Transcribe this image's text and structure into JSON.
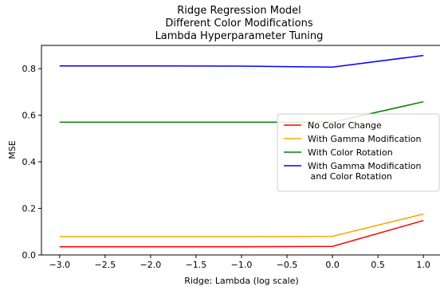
{
  "chart_data": {
    "type": "line",
    "title_lines": [
      "Ridge Regression Model",
      "Different Color Modifications",
      "Lambda Hyperparameter Tuning"
    ],
    "xlabel": "Ridge: Lambda (log scale)",
    "ylabel": "MSE",
    "xlim": [
      -3.2,
      1.2
    ],
    "ylim": [
      0.0,
      0.9
    ],
    "xticks": [
      -3.0,
      -2.5,
      -2.0,
      -1.5,
      -1.0,
      -0.5,
      0.0,
      0.5,
      1.0
    ],
    "xtick_labels": [
      "−3.0",
      "−2.5",
      "−2.0",
      "−1.5",
      "−1.0",
      "−0.5",
      "0.0",
      "0.5",
      "1.0"
    ],
    "yticks": [
      0.0,
      0.2,
      0.4,
      0.6,
      0.8
    ],
    "ytick_labels": [
      "0.0",
      "0.2",
      "0.4",
      "0.6",
      "0.8"
    ],
    "grid": false,
    "legend_position": "center-right",
    "x": [
      -3,
      -2,
      -1,
      0,
      1
    ],
    "series": [
      {
        "name": "No Color Change",
        "color": "#ff0000",
        "values": [
          0.035,
          0.035,
          0.035,
          0.037,
          0.148
        ]
      },
      {
        "name": "With Gamma Modification",
        "color": "#ffa500",
        "values": [
          0.079,
          0.079,
          0.079,
          0.08,
          0.176
        ]
      },
      {
        "name": "With Color Rotation",
        "color": "#008000",
        "values": [
          0.57,
          0.57,
          0.57,
          0.57,
          0.658
        ]
      },
      {
        "name": "With Gamma Modification\n and Color Rotation",
        "color": "#0000ff",
        "values": [
          0.812,
          0.812,
          0.811,
          0.807,
          0.857
        ]
      }
    ]
  }
}
